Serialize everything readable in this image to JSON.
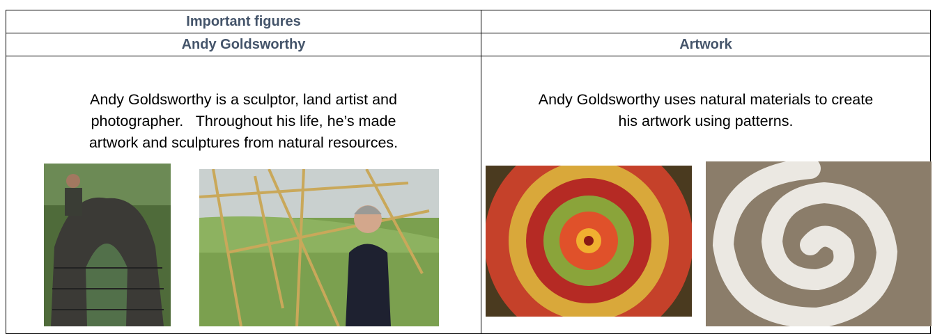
{
  "table": {
    "rows": [
      [
        "Important figures"
      ],
      [
        "Andy Goldsworthy",
        "Artwork"
      ],
      [
        [
          "Andy Goldsworthy is a sculptor, land artist and",
          "photographer.   Throughout his life, he’s made",
          "artwork and sculptures from natural resources."
        ],
        [
          "Andy Goldsworthy uses natural materials to create",
          "his artwork using patterns."
        ]
      ]
    ]
  }
}
